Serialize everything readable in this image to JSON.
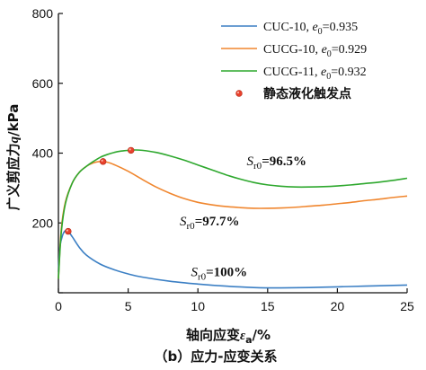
{
  "chart_data": {
    "type": "line",
    "title": "",
    "caption": "（b）应力-应变关系",
    "xlabel_prefix": "轴向应变",
    "xlabel_symbol": "ε",
    "xlabel_sub": "a",
    "xlabel_unit": "/%",
    "ylabel_prefix": "广义剪应力",
    "ylabel_symbol": "q",
    "ylabel_unit": "/kPa",
    "xlim": [
      0,
      25
    ],
    "ylim": [
      0,
      800
    ],
    "xticks": [
      0,
      5,
      10,
      15,
      20,
      25
    ],
    "yticks": [
      0,
      200,
      400,
      600,
      800
    ],
    "grid": false,
    "legend_position": "top-right",
    "series": [
      {
        "name": "CUC-10, e0=0.935",
        "label_main": "CUC-10, ",
        "label_sym": "e",
        "label_sub": "0",
        "label_val": "=0.935",
        "color": "#3b7fc4",
        "x": [
          0,
          0.1,
          0.3,
          0.5,
          0.7,
          1,
          1.5,
          2,
          3,
          4,
          5,
          6,
          8,
          10,
          12,
          14,
          15,
          16,
          18,
          20,
          22,
          24,
          25
        ],
        "y": [
          60,
          130,
          165,
          178,
          176,
          160,
          130,
          108,
          82,
          66,
          54,
          45,
          33,
          25,
          19,
          15,
          14,
          14,
          15,
          17,
          19,
          21,
          22
        ]
      },
      {
        "name": "CUCG-10, e0=0.929",
        "label_main": "CUCG-10, ",
        "label_sym": "e",
        "label_sub": "0",
        "label_val": "=0.929",
        "color": "#f0862e",
        "x": [
          0,
          0.2,
          0.5,
          1,
          1.5,
          2,
          2.5,
          3,
          3.5,
          4,
          5,
          6,
          7,
          8,
          9,
          10,
          11,
          12,
          13,
          14,
          15,
          16,
          17,
          18,
          19,
          20,
          21,
          22,
          23,
          24,
          25
        ],
        "y": [
          40,
          180,
          260,
          315,
          345,
          362,
          372,
          376,
          374,
          367,
          348,
          325,
          303,
          285,
          270,
          259,
          252,
          247,
          244,
          242,
          242,
          243,
          245,
          248,
          251,
          255,
          259,
          264,
          268,
          273,
          277
        ]
      },
      {
        "name": "CUCG-11, e0=0.932",
        "label_main": "CUCG-11, ",
        "label_sym": "e",
        "label_sub": "0",
        "label_val": "=0.932",
        "color": "#2ea82e",
        "x": [
          0,
          0.2,
          0.5,
          1,
          1.5,
          2,
          2.5,
          3,
          3.5,
          4,
          4.5,
          5,
          5.5,
          6,
          7,
          8,
          9,
          10,
          11,
          12,
          13,
          14,
          15,
          16,
          17,
          18,
          19,
          20,
          21,
          22,
          23,
          24,
          25
        ],
        "y": [
          40,
          170,
          255,
          315,
          345,
          362,
          376,
          388,
          396,
          402,
          406,
          408,
          409,
          408,
          402,
          392,
          380,
          366,
          352,
          338,
          326,
          316,
          309,
          305,
          303,
          303,
          304,
          306,
          309,
          313,
          317,
          322,
          328
        ]
      }
    ],
    "points": {
      "name": "静态液化触发点",
      "color": "#e8412c",
      "x": [
        0.7,
        3.2,
        5.2
      ],
      "y": [
        176,
        376,
        408
      ]
    },
    "annotations": [
      {
        "sym": "S",
        "sub": "r0",
        "val": "=96.5%",
        "x": 13.5,
        "y": 365
      },
      {
        "sym": "S",
        "sub": "r0",
        "val": "=97.7%",
        "x": 8.7,
        "y": 193
      },
      {
        "sym": "S",
        "sub": "r0",
        "val": "=100%",
        "x": 9.5,
        "y": 48
      }
    ]
  }
}
